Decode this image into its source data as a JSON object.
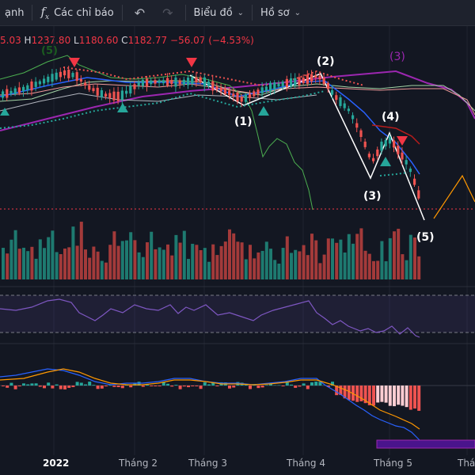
{
  "toolbar": {
    "partial_left": "ạnh",
    "indicators_label": "Các chỉ báo",
    "chart_label": "Biểu đồ",
    "profile_label": "Hồ sơ"
  },
  "ohlc": {
    "open_partial": "5.03",
    "high": "1237.80",
    "low": "1180.60",
    "close": "1182.77",
    "change": "−56.07 (−4.53%)"
  },
  "waves": {
    "w1": "(1)",
    "w2": "(2)",
    "w3": "(3)",
    "w4": "(4)",
    "w5": "(5)",
    "top_3": "(3)",
    "top_partial": "(5)"
  },
  "time_axis": [
    "2022",
    "Tháng 2",
    "Tháng 3",
    "Tháng 4",
    "Tháng 5",
    "Thá"
  ],
  "colors": {
    "up": "#26a69a",
    "down": "#ef5350",
    "bg": "#131722",
    "purple": "#9c27b0"
  }
}
